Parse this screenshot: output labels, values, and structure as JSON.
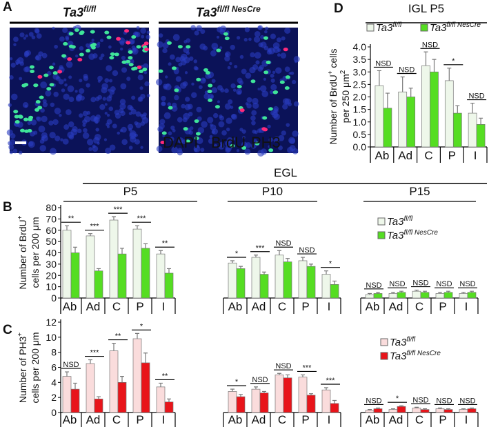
{
  "panel_labels": [
    "A",
    "B",
    "C",
    "D"
  ],
  "images": [
    {
      "title": "Ta3",
      "sup": "fl/fl"
    },
    {
      "title": "Ta3",
      "sup": "fl/fl NesCre"
    }
  ],
  "stain_labels": [
    "DAPI",
    "BrdU",
    "PH3"
  ],
  "chart_data": [
    {
      "type": "bar",
      "title": "IGL P5",
      "categories": [
        "Ab",
        "Ad",
        "C",
        "P",
        "I"
      ],
      "series": [
        {
          "name": "Ta3",
          "name_sup": "fl/fl",
          "color": "#eef7ea",
          "values": [
            2.45,
            2.2,
            3.25,
            2.65,
            1.35
          ],
          "errors": [
            0.6,
            0.6,
            0.55,
            0.5,
            0.4
          ]
        },
        {
          "name": "Ta3",
          "name_sup": "fl/fl NesCre",
          "color": "#55dd22",
          "values": [
            1.55,
            2.0,
            3.0,
            1.35,
            0.9
          ],
          "errors": [
            0.6,
            0.35,
            0.5,
            0.3,
            0.25
          ]
        }
      ],
      "significance": [
        "NSD",
        "NSD",
        "NSD",
        "*",
        "NSD"
      ],
      "ylim": [
        0,
        4
      ],
      "yticks": [
        {
          "value": 0,
          "label": "0.0"
        },
        {
          "value": 0.5,
          "label": "0.5"
        },
        {
          "value": 1,
          "label": "1.0"
        },
        {
          "value": 1.5,
          "label": "1.5"
        },
        {
          "value": 2,
          "label": "2.0"
        },
        {
          "value": 2.5,
          "label": "2.5"
        },
        {
          "value": 3,
          "label": "3.0"
        },
        {
          "value": 3.5,
          "label": "3.5"
        },
        {
          "value": 4,
          "label": "4.0"
        }
      ],
      "ylabel": [
        [
          {
            "text": "Number of BrdU"
          },
          {
            "text": "+",
            "sup": true
          },
          {
            "text": " cells"
          }
        ],
        [
          {
            "text": "per 250 μm"
          },
          {
            "text": "2",
            "sup": true
          }
        ]
      ]
    },
    {
      "type": "bar",
      "title": "EGL",
      "group_labels": [
        "P5",
        "P10",
        "P15"
      ],
      "categories": [
        "Ab",
        "Ad",
        "C",
        "P",
        "I",
        "Ab",
        "Ad",
        "C",
        "P",
        "I",
        "Ab",
        "Ad",
        "C",
        "P",
        "I"
      ],
      "series": [
        {
          "name": "Ta3",
          "name_sup": "fl/fl",
          "color": "#eef7ea",
          "values": [
            60,
            55,
            69,
            61,
            39,
            31,
            36,
            38,
            33,
            21,
            3,
            4,
            6,
            4,
            4
          ],
          "errors": [
            4,
            2,
            3,
            3,
            3,
            2,
            2,
            4,
            3,
            3,
            1,
            1,
            1,
            1,
            1
          ]
        },
        {
          "name": "Ta3",
          "name_sup": "fl/fl NesCre",
          "color": "#55dd22",
          "values": [
            40,
            24,
            39,
            44,
            22,
            26,
            21,
            32,
            28,
            12,
            4,
            5,
            5,
            5,
            5
          ],
          "errors": [
            5,
            2,
            5,
            4,
            4,
            2,
            2,
            3,
            2,
            3,
            1,
            1,
            1,
            1,
            1
          ]
        }
      ],
      "significance": [
        "**",
        "***",
        "***",
        "***",
        "**",
        "*",
        "***",
        "NSD",
        "NSD",
        "*",
        "NSD",
        "NSD",
        "NSD",
        "NSD",
        "NSD"
      ],
      "ylim": [
        0,
        80
      ],
      "yticks": [
        0,
        10,
        20,
        30,
        40,
        50,
        60,
        70,
        80
      ],
      "ylabel": [
        [
          {
            "text": "Number of BrdU"
          },
          {
            "text": "+",
            "sup": true
          }
        ],
        [
          {
            "text": "cells per 200 μm"
          }
        ]
      ]
    },
    {
      "type": "bar",
      "categories": [
        "Ab",
        "Ad",
        "C",
        "P",
        "I",
        "Ab",
        "Ad",
        "C",
        "P",
        "I",
        "Ab",
        "Ad",
        "C",
        "P",
        "I"
      ],
      "series": [
        {
          "name": "Ta3",
          "name_sup": "fl/fl",
          "color": "#fadcdc",
          "values": [
            4.8,
            6.5,
            8.2,
            9.8,
            3.4,
            2.8,
            3.1,
            5.0,
            4.7,
            3.0,
            0.3,
            0.4,
            0.6,
            0.5,
            0.4
          ],
          "errors": [
            0.6,
            0.5,
            1.0,
            0.7,
            0.5,
            0.3,
            0.3,
            0.2,
            0.3,
            0.3,
            0.1,
            0.1,
            0.1,
            0.1,
            0.1
          ]
        },
        {
          "name": "Ta3",
          "name_sup": "fl/fl NesCre",
          "color": "#e8141a",
          "values": [
            3.1,
            1.8,
            4.0,
            6.6,
            1.4,
            2.1,
            2.6,
            4.6,
            2.3,
            1.2,
            0.5,
            0.8,
            0.4,
            0.4,
            0.5
          ],
          "errors": [
            0.8,
            0.3,
            0.8,
            1.3,
            0.4,
            0.3,
            0.2,
            0.4,
            0.2,
            0.4,
            0.1,
            0.1,
            0.1,
            0.1,
            0.1
          ]
        }
      ],
      "significance": [
        "NSD",
        "***",
        "**",
        "*",
        "**",
        "*",
        "NSD",
        "NSD",
        "***",
        "***",
        "NSD",
        "*",
        "NSD",
        "NSD",
        "NSD"
      ],
      "ylim": [
        0,
        12
      ],
      "yticks": [
        0,
        2,
        4,
        6,
        8,
        10,
        12
      ],
      "ylabel": [
        [
          {
            "text": "Number of PH3"
          },
          {
            "text": "+",
            "sup": true
          }
        ],
        [
          {
            "text": "cells per 200 μm"
          }
        ]
      ]
    }
  ]
}
